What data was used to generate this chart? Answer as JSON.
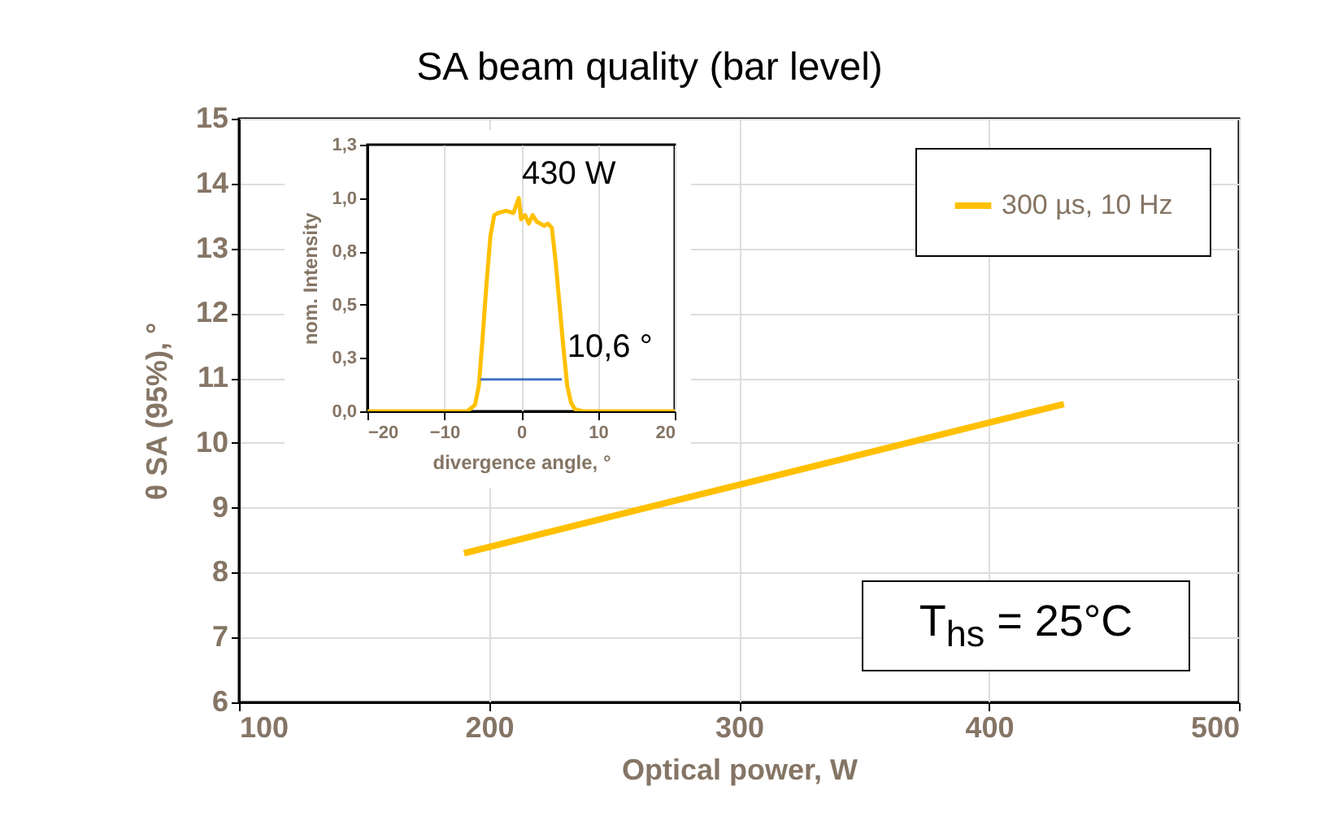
{
  "chart_data": [
    {
      "type": "line",
      "title": "SA beam quality (bar level)",
      "xlabel": "Optical power, W",
      "ylabel": "θ SA (95%), °",
      "series": [
        {
          "name": "300 µs, 10 Hz",
          "color": "#ffc000",
          "x": [
            190,
            430
          ],
          "values": [
            8.3,
            10.6
          ]
        }
      ],
      "xlim": [
        100,
        500
      ],
      "xticks": [
        100,
        200,
        300,
        400,
        500
      ],
      "ylim": [
        6,
        15
      ],
      "yticks": [
        6,
        7,
        8,
        9,
        10,
        11,
        12,
        13,
        14,
        15
      ],
      "grid": true,
      "legend": "top right",
      "annotations": [
        "T$_{hs}$ = 25°C"
      ]
    },
    {
      "type": "line",
      "xlabel": "divergence angle, °",
      "ylabel": "nom. Intensity",
      "series": [
        {
          "color": "#ffc000",
          "x": [
            -20,
            -7,
            -6,
            -5.5,
            -5,
            -4.5,
            -4,
            -3.5,
            -3,
            -2,
            -1,
            -0.3,
            0,
            0.5,
            1,
            1.5,
            2,
            3,
            3.5,
            4,
            4.5,
            5,
            5.5,
            6,
            6.5,
            7,
            8,
            20
          ],
          "values": [
            0,
            0,
            0.03,
            0.12,
            0.35,
            0.6,
            0.82,
            0.92,
            0.93,
            0.94,
            0.93,
            1.0,
            0.9,
            0.92,
            0.88,
            0.92,
            0.89,
            0.87,
            0.88,
            0.86,
            0.7,
            0.5,
            0.3,
            0.12,
            0.04,
            0.01,
            0,
            0
          ]
        },
        {
          "color": "#4472c4",
          "x": [
            -5.3,
            5.3
          ],
          "values": [
            0.15,
            0.15
          ]
        }
      ],
      "xlim": [
        -20,
        20
      ],
      "xticks": [
        -20,
        -10,
        0,
        10,
        20
      ],
      "ylim": [
        0,
        1.25
      ],
      "yticks": [
        {
          "value": 0,
          "label": "0,0"
        },
        {
          "value": 0.25,
          "label": "0,3"
        },
        {
          "value": 0.5,
          "label": "0,5"
        },
        {
          "value": 0.75,
          "label": "0,8"
        },
        {
          "value": 1,
          "label": "1,0"
        },
        {
          "value": 1.25,
          "label": "1,3"
        }
      ],
      "grid": "x",
      "annotations": [
        "430 W",
        {
          "text": "10,6 °",
          "x": 6,
          "y": 0.3
        }
      ]
    }
  ]
}
